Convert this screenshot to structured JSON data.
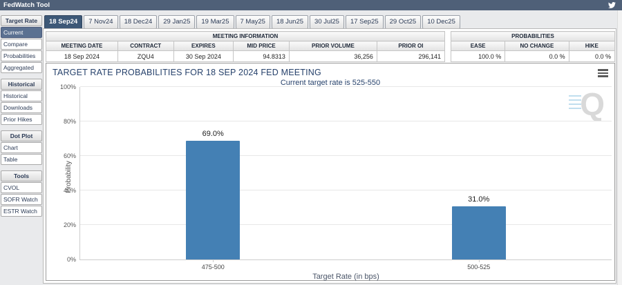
{
  "window": {
    "title": "FedWatch Tool"
  },
  "topbar": {
    "social_icon": "twitter-bird-icon"
  },
  "tabs": {
    "selected": "18 Sep24",
    "items": [
      "18 Sep24",
      "7 Nov24",
      "18 Dec24",
      "29 Jan25",
      "19 Mar25",
      "7 May25",
      "18 Jun25",
      "30 Jul25",
      "17 Sep25",
      "29 Oct25",
      "10 Dec25"
    ]
  },
  "sidebar": {
    "sections": [
      {
        "title": "Target Rate",
        "items": [
          {
            "label": "Current",
            "selected": true
          },
          {
            "label": "Compare",
            "selected": false
          },
          {
            "label": "Probabilities",
            "selected": false
          },
          {
            "label": "Aggregated",
            "selected": false
          }
        ]
      },
      {
        "title": "Historical",
        "items": [
          {
            "label": "Historical",
            "selected": false
          },
          {
            "label": "Downloads",
            "selected": false
          },
          {
            "label": "Prior Hikes",
            "selected": false
          }
        ]
      },
      {
        "title": "Dot Plot",
        "items": [
          {
            "label": "Chart",
            "selected": false
          },
          {
            "label": "Table",
            "selected": false
          }
        ]
      },
      {
        "title": "Tools",
        "items": [
          {
            "label": "CVOL",
            "selected": false
          },
          {
            "label": "SOFR Watch",
            "selected": false
          },
          {
            "label": "ESTR Watch",
            "selected": false
          }
        ]
      }
    ]
  },
  "meeting_info": {
    "title": "MEETING INFORMATION",
    "columns": [
      {
        "label": "MEETING DATE",
        "value": "18 Sep 2024"
      },
      {
        "label": "CONTRACT",
        "value": "ZQU4"
      },
      {
        "label": "EXPIRES",
        "value": "30 Sep 2024"
      },
      {
        "label": "MID PRICE",
        "value": "94.8313"
      },
      {
        "label": "PRIOR VOLUME",
        "value": "36,256"
      },
      {
        "label": "PRIOR OI",
        "value": "296,141"
      }
    ]
  },
  "probabilities": {
    "title": "PROBABILITIES",
    "columns": [
      {
        "label": "EASE",
        "value": "100.0 %"
      },
      {
        "label": "NO CHANGE",
        "value": "0.0 %"
      },
      {
        "label": "HIKE",
        "value": "0.0 %"
      }
    ]
  },
  "chart_data": {
    "type": "bar",
    "title": "TARGET RATE PROBABILITIES FOR 18 SEP 2024 FED MEETING",
    "subtitle": "Current target rate is 525-550",
    "categories": [
      "475-500",
      "500-525"
    ],
    "values": [
      69.0,
      31.0
    ],
    "bar_labels": [
      "69.0%",
      "31.0%"
    ],
    "xlabel": "Target Rate (in bps)",
    "ylabel": "Probability",
    "ylim": [
      0,
      100
    ],
    "yticks": [
      0,
      20,
      40,
      60,
      80,
      100
    ],
    "ytick_suffix": "%",
    "grid": true,
    "legend": "none",
    "bar_color": "#4480b4",
    "watermark_letter": "Q"
  },
  "colors": {
    "header_bar": "#4f6078",
    "selected_tab": "#3d5877",
    "selected_sidebar_item": "#5b7191",
    "chart_title_text": "#26416b",
    "bar": "#4480b4"
  }
}
